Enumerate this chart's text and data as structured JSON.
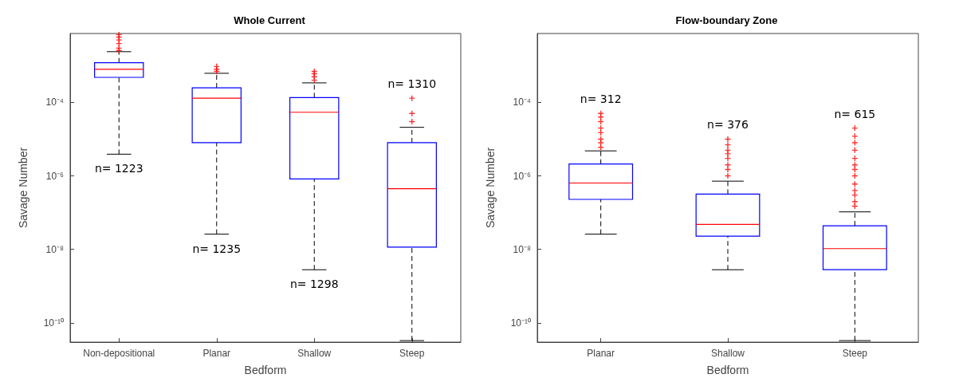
{
  "chart_data": [
    {
      "type": "box",
      "title": "Whole Current",
      "xlabel": "Bedform",
      "ylabel": "Savage Number",
      "categories": [
        "Non-depositional",
        "Planar",
        "Shallow",
        "Steep"
      ],
      "log": "y",
      "ylim": [
        3e-11,
        0.0075
      ],
      "yticks": [
        {
          "value": 1e-10,
          "label": "10⁻¹⁰"
        },
        {
          "value": 1e-08,
          "label": "10⁻⁸"
        },
        {
          "value": 1e-06,
          "label": "10⁻⁶"
        },
        {
          "value": 0.0001,
          "label": "10⁻⁴"
        }
      ],
      "grid": false,
      "marker": "cross",
      "line_style": "dashed",
      "series": [
        {
          "color": "#0000ff",
          "boxes": [
            {
              "low": 3.9e-06,
              "q1": 0.00048,
              "median": 0.0008,
              "q3": 0.0012,
              "high": 0.0024,
              "outliers": [
                0.0026,
                0.003,
                0.004,
                0.005,
                0.006,
                0.007
              ]
            },
            {
              "low": 2.6e-08,
              "q1": 8e-06,
              "median": 0.00013,
              "q3": 0.00025,
              "high": 0.00062,
              "outliers": [
                0.0007,
                0.0008,
                0.00095
              ]
            },
            {
              "low": 2.8e-09,
              "q1": 8.3e-07,
              "median": 5.4e-05,
              "q3": 0.000135,
              "high": 0.00034,
              "outliers": [
                0.0004,
                0.0005,
                0.0006,
                0.0007
              ]
            },
            {
              "low": 3.3e-11,
              "q1": 1.15e-08,
              "median": 4.5e-07,
              "q3": 8e-06,
              "high": 2.1e-05,
              "outliers": [
                3e-05,
                5e-05,
                0.00013
              ]
            }
          ]
        }
      ],
      "annotations": [
        {
          "text": "n= 1223",
          "x": "Non-depositional",
          "y": 3.9e-06
        },
        {
          "text": "n= 1235",
          "x": "Planar",
          "y": 2.6e-08
        },
        {
          "text": "n= 1298",
          "x": "Shallow",
          "y": 2.8e-09
        },
        "n= 1310"
      ]
    },
    {
      "type": "box",
      "title": "Flow-boundary Zone",
      "xlabel": "Bedform",
      "ylabel": "Savage Number",
      "categories": [
        "Planar",
        "Shallow",
        "Steep"
      ],
      "log": "y",
      "ylim": [
        3e-11,
        0.0075
      ],
      "yticks": [
        {
          "value": 1e-10,
          "label": "10⁻¹⁰"
        },
        {
          "value": 1e-08,
          "label": "10⁻⁸"
        },
        {
          "value": 1e-06,
          "label": "10⁻⁶"
        },
        {
          "value": 0.0001,
          "label": "10⁻⁴"
        }
      ],
      "grid": false,
      "marker": "cross",
      "line_style": "dashed",
      "series": [
        {
          "color": "#0000ff",
          "boxes": [
            {
              "low": 2.6e-08,
              "q1": 2.3e-07,
              "median": 6.4e-07,
              "q3": 2.1e-06,
              "high": 4.8e-06,
              "outliers": [
                6e-06,
                8e-06,
                1e-05,
                1.5e-05,
                2e-05,
                3e-05,
                4e-05,
                5e-05
              ]
            },
            {
              "low": 2.8e-09,
              "q1": 2.3e-08,
              "median": 4.8e-08,
              "q3": 3.2e-07,
              "high": 7.2e-07,
              "outliers": [
                1e-06,
                1.5e-06,
                2e-06,
                3e-06,
                4e-06,
                5e-06,
                7e-06,
                1e-05
              ]
            },
            {
              "low": 3.3e-11,
              "q1": 2.8e-09,
              "median": 1.05e-08,
              "q3": 4.4e-08,
              "high": 1.05e-07,
              "outliers": [
                1.5e-07,
                2e-07,
                3e-07,
                4e-07,
                6e-07,
                1e-06,
                1.5e-06,
                2e-06,
                3e-06,
                5e-06,
                8e-06,
                1.2e-05,
                2e-05
              ]
            }
          ]
        }
      ],
      "annotations": [
        "n= 312",
        "n= 376",
        "n= 615"
      ]
    }
  ]
}
